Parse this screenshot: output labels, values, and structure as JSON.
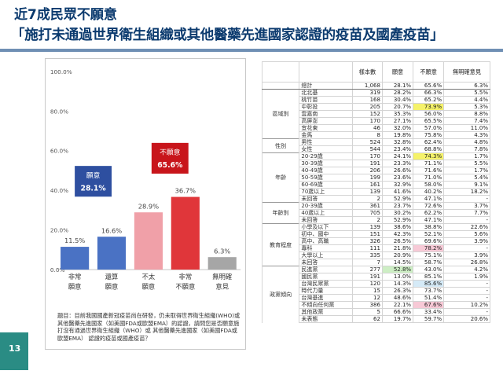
{
  "page": {
    "title_line1": "近7成民眾不願意",
    "title_line2": "「施打未通過世界衛生組織或其他醫藥先進國家認證的疫苗及國產疫苗」",
    "page_number": "13",
    "accent_color": "#6f8fb4",
    "footer_color": "#2a8c84"
  },
  "chart_data": {
    "type": "bar",
    "categories": [
      [
        "非常",
        "願意"
      ],
      [
        "還算",
        "願意"
      ],
      [
        "不太",
        "願意"
      ],
      [
        "非常",
        "不願意"
      ],
      [
        "無明確",
        "意見"
      ]
    ],
    "values": [
      11.5,
      16.6,
      28.9,
      36.7,
      6.3
    ],
    "value_labels": [
      "11.5%",
      "16.6%",
      "28.9%",
      "36.7%",
      "6.3%"
    ],
    "colors": [
      "#4a72c4",
      "#4a72c4",
      "#f0a0a8",
      "#e0363a",
      "#a6a6a6"
    ],
    "yticks": [
      "0.0%",
      "20.0%",
      "40.0%",
      "60.0%",
      "80.0%",
      "100.0%"
    ],
    "ylim": [
      0,
      100
    ],
    "grid": false,
    "annotations": [
      {
        "label": "願意",
        "value": "28.1%",
        "color": "#2e4fa0"
      },
      {
        "label": "不願意",
        "value": "65.6%",
        "color": "#c8151b"
      }
    ]
  },
  "note": "題目：目前我國國產新冠疫苗尚在研發，仍未取得世界衛生組織(WHO)或其他醫藥先進國家（如美國FDA或歐盟EMA）的認證，請問您是否願意施打沒有通過世界衛生組織（WHO）或 其他醫藥先進國家（如美國FDA或歐盟EMA） 認證的疫苗或國產疫苗？",
  "table": {
    "headers": [
      "樣本數",
      "願意",
      "不願意",
      "無明確意見"
    ],
    "total": {
      "label": "總計",
      "n": "1,068",
      "yes": "28.1%",
      "no": "65.6%",
      "na": "6.3%"
    },
    "groups": [
      {
        "name": "區域別",
        "rows": [
          {
            "label": "北北基",
            "n": "319",
            "yes": "28.2%",
            "no": "66.3%",
            "na": "5.5%"
          },
          {
            "label": "桃竹苗",
            "n": "168",
            "yes": "30.4%",
            "no": "65.2%",
            "na": "4.4%"
          },
          {
            "label": "中彰投",
            "n": "205",
            "yes": "20.7%",
            "no": "73.9%",
            "na": "5.3%",
            "hl": "no-yellow"
          },
          {
            "label": "雲嘉南",
            "n": "152",
            "yes": "35.3%",
            "no": "56.0%",
            "na": "8.8%"
          },
          {
            "label": "高屏澎",
            "n": "170",
            "yes": "27.1%",
            "no": "65.5%",
            "na": "7.4%"
          },
          {
            "label": "宜花東",
            "n": "46",
            "yes": "32.0%",
            "no": "57.0%",
            "na": "11.0%"
          },
          {
            "label": "金馬",
            "n": "8",
            "yes": "19.8%",
            "no": "75.8%",
            "na": "4.3%"
          }
        ]
      },
      {
        "name": "性別",
        "rows": [
          {
            "label": "男性",
            "n": "524",
            "yes": "32.8%",
            "no": "62.4%",
            "na": "4.8%"
          },
          {
            "label": "女性",
            "n": "544",
            "yes": "23.4%",
            "no": "68.8%",
            "na": "7.8%"
          }
        ]
      },
      {
        "name": "年齡",
        "rows": [
          {
            "label": "20-29歲",
            "n": "170",
            "yes": "24.1%",
            "no": "74.3%",
            "na": "1.7%",
            "hl": "no-yellow"
          },
          {
            "label": "30-39歲",
            "n": "191",
            "yes": "23.3%",
            "no": "71.1%",
            "na": "5.5%"
          },
          {
            "label": "40-49歲",
            "n": "206",
            "yes": "26.6%",
            "no": "71.6%",
            "na": "1.7%"
          },
          {
            "label": "50-59歲",
            "n": "199",
            "yes": "23.6%",
            "no": "71.0%",
            "na": "5.4%"
          },
          {
            "label": "60-69歲",
            "n": "161",
            "yes": "32.9%",
            "no": "58.0%",
            "na": "9.1%"
          },
          {
            "label": "70歲以上",
            "n": "139",
            "yes": "41.6%",
            "no": "40.2%",
            "na": "18.2%"
          },
          {
            "label": "未回答",
            "n": "2",
            "yes": "52.9%",
            "no": "47.1%",
            "na": "-"
          }
        ]
      },
      {
        "name": "年齡別",
        "rows": [
          {
            "label": "20-39歲",
            "n": "361",
            "yes": "23.7%",
            "no": "72.6%",
            "na": "3.7%"
          },
          {
            "label": "40歲以上",
            "n": "705",
            "yes": "30.2%",
            "no": "62.2%",
            "na": "7.7%"
          },
          {
            "label": "未回答",
            "n": "2",
            "yes": "52.9%",
            "no": "47.1%",
            "na": "-"
          }
        ]
      },
      {
        "name": "教育程度",
        "rows": [
          {
            "label": "小學及以下",
            "n": "139",
            "yes": "38.6%",
            "no": "38.8%",
            "na": "22.6%"
          },
          {
            "label": "初中、國中",
            "n": "151",
            "yes": "42.3%",
            "no": "52.1%",
            "na": "5.6%"
          },
          {
            "label": "高中、高職",
            "n": "326",
            "yes": "26.5%",
            "no": "69.6%",
            "na": "3.9%"
          },
          {
            "label": "專科",
            "n": "111",
            "yes": "21.8%",
            "no": "78.2%",
            "na": "-",
            "hl": "no-pink"
          },
          {
            "label": "大學以上",
            "n": "335",
            "yes": "20.9%",
            "no": "75.1%",
            "na": "3.9%"
          },
          {
            "label": "未回答",
            "n": "7",
            "yes": "14.5%",
            "no": "58.7%",
            "na": "26.8%"
          }
        ]
      },
      {
        "name": "政黨傾向",
        "rows": [
          {
            "label": "民進黨",
            "n": "277",
            "yes": "52.8%",
            "no": "43.0%",
            "na": "4.2%",
            "hl": "yes-green"
          },
          {
            "label": "國民黨",
            "n": "191",
            "yes": "13.0%",
            "no": "85.1%",
            "na": "1.9%"
          },
          {
            "label": "台灣民眾黨",
            "n": "120",
            "yes": "14.3%",
            "no": "85.6%",
            "na": "-",
            "hl": "no-blue"
          },
          {
            "label": "時代力量",
            "n": "15",
            "yes": "26.3%",
            "no": "73.7%",
            "na": "-"
          },
          {
            "label": "台灣基進",
            "n": "12",
            "yes": "48.6%",
            "no": "51.4%",
            "na": "-"
          },
          {
            "label": "不傾向任何黨",
            "n": "386",
            "yes": "22.1%",
            "no": "67.6%",
            "na": "10.2%",
            "hl": "no-pink"
          },
          {
            "label": "其他政黨",
            "n": "5",
            "yes": "66.6%",
            "no": "33.4%",
            "na": "-"
          },
          {
            "label": "未表態",
            "n": "62",
            "yes": "19.7%",
            "no": "59.7%",
            "na": "20.6%"
          }
        ]
      }
    ]
  }
}
